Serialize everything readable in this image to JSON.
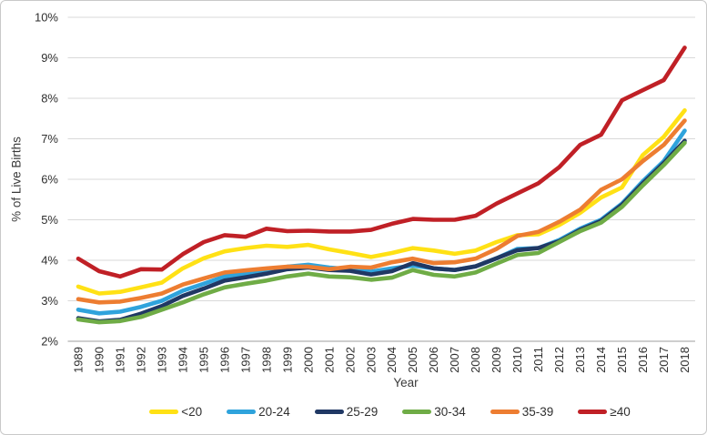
{
  "frame": {
    "background": "#ffffff",
    "border_color": "#c9c9c9"
  },
  "axes": {
    "gridline_color": "#d9d9d9",
    "axis_line_color": "#9d9d9d",
    "tick_label_color": "#2f2f2f",
    "y_tick_labels": [
      "2%",
      "3%",
      "4%",
      "5%",
      "6%",
      "7%",
      "8%",
      "9%",
      "10%"
    ]
  },
  "chart_data": {
    "type": "line",
    "title": "",
    "xlabel": "Year",
    "ylabel": "% of Live Births",
    "grid": true,
    "legend_position": "bottom",
    "ylim": [
      2,
      10
    ],
    "yticks": [
      2,
      3,
      4,
      5,
      6,
      7,
      8,
      9,
      10
    ],
    "ytick_suffix": "%",
    "x": [
      "1989",
      "1990",
      "1991",
      "1992",
      "1993",
      "1994",
      "1995",
      "1996",
      "1997",
      "1998",
      "1999",
      "2000",
      "2001",
      "2002",
      "2003",
      "2004",
      "2005",
      "2006",
      "2007",
      "2008",
      "2009",
      "2010",
      "2011",
      "2012",
      "2013",
      "2014",
      "2015",
      "2016",
      "2017",
      "2018"
    ],
    "series": [
      {
        "name": "<20",
        "color": "#FFE115",
        "values": [
          3.35,
          3.18,
          3.22,
          3.33,
          3.45,
          3.8,
          4.05,
          4.22,
          4.3,
          4.36,
          4.33,
          4.38,
          4.27,
          4.18,
          4.08,
          4.18,
          4.3,
          4.24,
          4.16,
          4.24,
          4.45,
          4.62,
          4.64,
          4.87,
          5.17,
          5.55,
          5.8,
          6.6,
          7.05,
          7.7
        ]
      },
      {
        "name": "20-24",
        "color": "#2FA3DC",
        "values": [
          2.78,
          2.69,
          2.73,
          2.85,
          3.0,
          3.25,
          3.42,
          3.6,
          3.67,
          3.73,
          3.84,
          3.89,
          3.82,
          3.78,
          3.72,
          3.8,
          3.87,
          3.8,
          3.76,
          3.85,
          4.05,
          4.28,
          4.3,
          4.5,
          4.78,
          5.0,
          5.4,
          5.95,
          6.45,
          7.2
        ]
      },
      {
        "name": "25-29",
        "color": "#203864",
        "values": [
          2.57,
          2.49,
          2.53,
          2.68,
          2.87,
          3.12,
          3.3,
          3.5,
          3.58,
          3.67,
          3.78,
          3.82,
          3.76,
          3.74,
          3.65,
          3.73,
          3.93,
          3.8,
          3.76,
          3.85,
          4.05,
          4.25,
          4.3,
          4.47,
          4.75,
          4.97,
          5.37,
          5.9,
          6.4,
          6.95
        ]
      },
      {
        "name": "30-34",
        "color": "#6FAC46",
        "values": [
          2.54,
          2.47,
          2.5,
          2.6,
          2.78,
          2.96,
          3.16,
          3.33,
          3.42,
          3.5,
          3.6,
          3.67,
          3.6,
          3.58,
          3.52,
          3.57,
          3.76,
          3.64,
          3.6,
          3.7,
          3.92,
          4.13,
          4.18,
          4.45,
          4.72,
          4.93,
          5.32,
          5.85,
          6.35,
          6.9
        ]
      },
      {
        "name": "35-39",
        "color": "#ED7D31",
        "values": [
          3.04,
          2.96,
          2.98,
          3.07,
          3.18,
          3.4,
          3.55,
          3.7,
          3.75,
          3.8,
          3.84,
          3.84,
          3.78,
          3.84,
          3.82,
          3.95,
          4.04,
          3.93,
          3.95,
          4.04,
          4.28,
          4.6,
          4.7,
          4.95,
          5.25,
          5.74,
          6.0,
          6.45,
          6.85,
          7.45
        ]
      },
      {
        "name": "≥40",
        "color": "#C02026",
        "values": [
          4.04,
          3.73,
          3.6,
          3.78,
          3.77,
          4.15,
          4.45,
          4.62,
          4.58,
          4.78,
          4.72,
          4.73,
          4.71,
          4.71,
          4.75,
          4.9,
          5.02,
          5.0,
          5.0,
          5.1,
          5.4,
          5.65,
          5.9,
          6.3,
          6.85,
          7.1,
          7.95,
          8.2,
          8.45,
          9.25
        ]
      }
    ]
  }
}
